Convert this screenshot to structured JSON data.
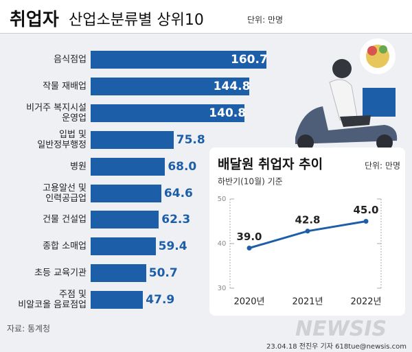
{
  "title": "취업자",
  "subtitle": "산업소분류별 상위10",
  "unit": "단위: 만명",
  "source": "자료: 통계청",
  "credit": "23.04.18 전진우 기자 618tue@newsis.com",
  "watermark": "NEWSIS",
  "chart_data": [
    {
      "type": "hbar",
      "color": "#1d5ea8",
      "categories": [
        "음식점업",
        "작물 재배업",
        "비거주 복지시설\n운영업",
        "입법 및\n일반정부행정",
        "병원",
        "고용알선 및\n인력공급업",
        "건물 건설업",
        "종합 소매업",
        "초등 교육기관",
        "주점 및\n비알코올 음료점업"
      ],
      "values": [
        160.7,
        144.8,
        140.8,
        75.8,
        68.0,
        64.6,
        62.3,
        59.4,
        50.7,
        47.9
      ],
      "value_labels": [
        "160.7",
        "144.8",
        "140.8",
        "75.8",
        "68.0",
        "64.6",
        "62.3",
        "59.4",
        "50.7",
        "47.9"
      ]
    },
    {
      "type": "line",
      "title": "배달원 취업자 추이",
      "unit": "단위: 만명",
      "subtitle": "하반기(10월) 기준",
      "color": "#1d5ea8",
      "categories": [
        "2020년",
        "2021년",
        "2022년"
      ],
      "values": [
        39.0,
        42.8,
        45.0
      ],
      "value_labels": [
        "39.0",
        "42.8",
        "45.0"
      ],
      "ylim": [
        30,
        50
      ],
      "yticks": [
        30,
        40,
        50
      ]
    }
  ]
}
